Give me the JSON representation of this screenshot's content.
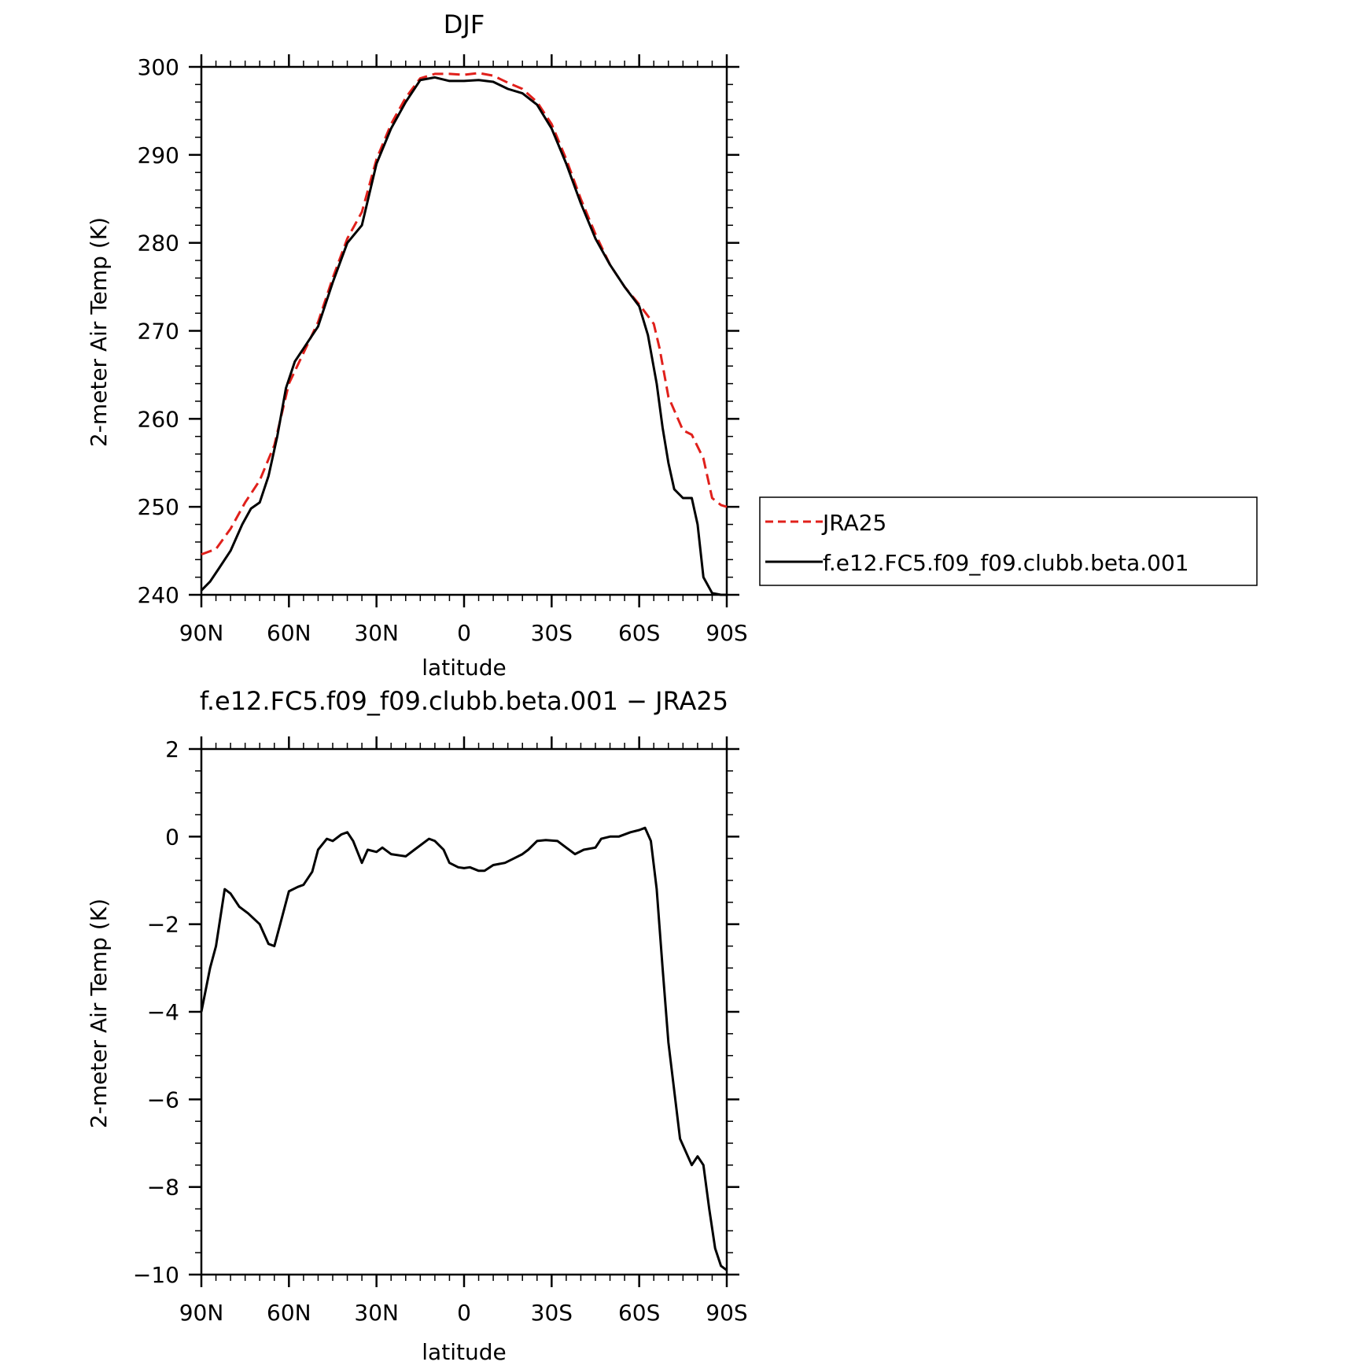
{
  "chart_data": [
    {
      "type": "line",
      "title": "DJF",
      "xlabel": "latitude",
      "ylabel": "2-meter Air Temp (K)",
      "xlim": [
        90,
        -90
      ],
      "ylim": [
        240,
        300
      ],
      "xticks": [
        90,
        60,
        30,
        0,
        -30,
        -60,
        -90
      ],
      "xtick_labels": [
        "90N",
        "60N",
        "30N",
        "0",
        "30S",
        "60S",
        "90S"
      ],
      "yticks": [
        240,
        250,
        260,
        270,
        280,
        290,
        300
      ],
      "ytick_labels": [
        "240",
        "250",
        "260",
        "270",
        "280",
        "290",
        "300"
      ],
      "grid": false,
      "legend": "right, outside plot",
      "series": [
        {
          "name": "JRA25",
          "color": "#e0201b",
          "dash": "dashed",
          "x": [
            90,
            85,
            80,
            75,
            70,
            65,
            60,
            55,
            50,
            45,
            40,
            35,
            30,
            25,
            20,
            15,
            10,
            5,
            0,
            -5,
            -10,
            -15,
            -20,
            -25,
            -30,
            -35,
            -40,
            -45,
            -50,
            -55,
            -60,
            -65,
            -67,
            -70,
            -75,
            -78,
            -82,
            -85,
            -88,
            -90
          ],
          "y": [
            244.6,
            245.2,
            247.5,
            250.5,
            253.0,
            257.0,
            264.0,
            267.5,
            271.0,
            276.0,
            280.5,
            283.5,
            289.5,
            293.5,
            296.5,
            298.7,
            299.2,
            299.2,
            299.1,
            299.3,
            299.0,
            298.2,
            297.5,
            296.0,
            293.5,
            289.5,
            285.0,
            281.0,
            277.5,
            275.0,
            273.0,
            270.8,
            268.0,
            262.5,
            258.7,
            258.2,
            255.5,
            251.0,
            250.2,
            250.0
          ]
        },
        {
          "name": "f.e12.FC5.f09_f09.clubb.beta.001",
          "color": "#000000",
          "dash": "solid",
          "x": [
            90,
            87,
            84,
            80,
            76,
            73,
            70,
            67,
            64,
            61,
            58,
            55,
            50,
            45,
            40,
            35,
            30,
            25,
            20,
            15,
            10,
            5,
            0,
            -5,
            -10,
            -15,
            -20,
            -25,
            -30,
            -35,
            -40,
            -45,
            -50,
            -55,
            -60,
            -63,
            -66,
            -68,
            -70,
            -72,
            -75,
            -78,
            -80,
            -82,
            -85,
            -88,
            -90
          ],
          "y": [
            240.5,
            241.5,
            243.0,
            245.0,
            248.0,
            249.8,
            250.5,
            253.5,
            258.0,
            263.5,
            266.5,
            268.0,
            270.5,
            275.5,
            280.0,
            282.0,
            289.0,
            293.0,
            296.0,
            298.5,
            298.8,
            298.4,
            298.4,
            298.5,
            298.3,
            297.5,
            297.0,
            295.7,
            293.0,
            289.0,
            284.5,
            280.5,
            277.5,
            275.0,
            272.8,
            269.5,
            264.0,
            259.0,
            255.0,
            252.0,
            251.0,
            251.0,
            248.0,
            242.0,
            240.2,
            240.0,
            240.0
          ]
        }
      ]
    },
    {
      "type": "line",
      "title": "f.e12.FC5.f09_f09.clubb.beta.001 − JRA25",
      "xlabel": "latitude",
      "ylabel": "2-meter Air Temp (K)",
      "xlim": [
        90,
        -90
      ],
      "ylim": [
        -10,
        2
      ],
      "xticks": [
        90,
        60,
        30,
        0,
        -30,
        -60,
        -90
      ],
      "xtick_labels": [
        "90N",
        "60N",
        "30N",
        "0",
        "30S",
        "60S",
        "90S"
      ],
      "yticks": [
        2,
        0,
        -2,
        -4,
        -6,
        -8,
        -10
      ],
      "ytick_labels": [
        "2",
        "0",
        "−2",
        "−4",
        "−6",
        "−8",
        "−10"
      ],
      "grid": false,
      "series": [
        {
          "color": "#000000",
          "dash": "solid",
          "x": [
            90,
            87,
            85,
            82,
            80,
            77,
            74,
            70,
            67,
            65,
            63,
            60,
            57,
            55,
            52,
            50,
            47,
            45,
            42,
            40,
            38,
            35,
            33,
            30,
            28,
            25,
            20,
            17,
            12,
            10,
            7,
            5,
            2,
            0,
            -2,
            -5,
            -7,
            -10,
            -14,
            -17,
            -20,
            -22,
            -25,
            -28,
            -32,
            -35,
            -38,
            -41,
            -45,
            -47,
            -50,
            -53,
            -57,
            -60,
            -62,
            -64,
            -66,
            -68,
            -70,
            -74,
            -78,
            -80,
            -82,
            -84,
            -86,
            -88,
            -90
          ],
          "y": [
            -4.0,
            -3.0,
            -2.5,
            -1.2,
            -1.3,
            -1.6,
            -1.75,
            -2.0,
            -2.45,
            -2.5,
            -2.0,
            -1.25,
            -1.15,
            -1.1,
            -0.8,
            -0.3,
            -0.05,
            -0.1,
            0.05,
            0.1,
            -0.1,
            -0.6,
            -0.3,
            -0.35,
            -0.25,
            -0.4,
            -0.45,
            -0.3,
            -0.05,
            -0.1,
            -0.3,
            -0.6,
            -0.7,
            -0.72,
            -0.7,
            -0.78,
            -0.78,
            -0.65,
            -0.6,
            -0.5,
            -0.4,
            -0.3,
            -0.1,
            -0.08,
            -0.1,
            -0.25,
            -0.4,
            -0.3,
            -0.25,
            -0.05,
            0.0,
            0.0,
            0.1,
            0.15,
            0.2,
            -0.1,
            -1.2,
            -3.0,
            -4.7,
            -6.9,
            -7.5,
            -7.3,
            -7.5,
            -8.5,
            -9.4,
            -9.8,
            -9.9
          ]
        }
      ]
    }
  ]
}
